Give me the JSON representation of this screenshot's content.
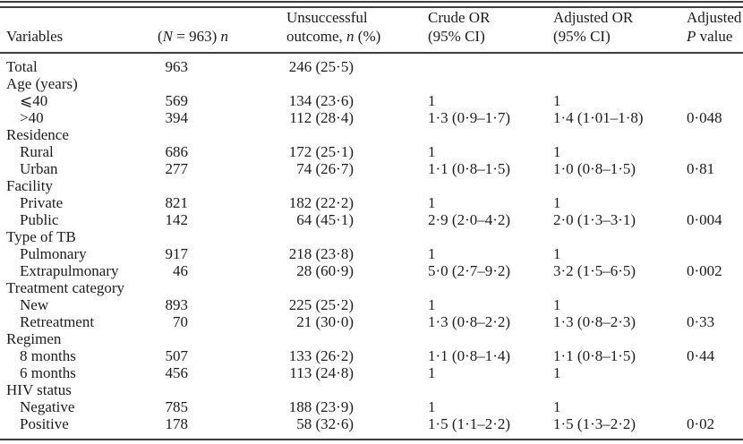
{
  "colors": {
    "background": "#ffffff",
    "text": "#1c1c1c",
    "rule": "#3d3d3d"
  },
  "table": {
    "headers": {
      "variables": "Variables",
      "n_col": {
        "open": "(",
        "N": "N",
        "rest": " = 963) ",
        "n": "n"
      },
      "outcome": {
        "line1": "Unsuccessful",
        "line2_pre": "outcome, ",
        "line2_n": "n",
        "line2_post": " (%)"
      },
      "crude": {
        "line1": "Crude OR",
        "line2": "(95% CI)"
      },
      "adjusted": {
        "line1": "Adjusted OR",
        "line2": "(95% CI)"
      },
      "p": {
        "line1": "Adjusted",
        "line2_P": "P",
        "line2_post": " value"
      }
    },
    "rows": [
      {
        "label": "Total",
        "indent": false,
        "n": "963",
        "outcome": "246 (25·5)",
        "crude": "",
        "adjusted": "",
        "p": ""
      },
      {
        "label": "Age (years)",
        "indent": false,
        "n": "",
        "outcome": "",
        "crude": "",
        "adjusted": "",
        "p": ""
      },
      {
        "label": "⩽40",
        "indent": true,
        "n": "569",
        "outcome": "134 (23·6)",
        "crude": "1",
        "adjusted": "1",
        "p": ""
      },
      {
        "label": ">40",
        "indent": true,
        "n": "394",
        "outcome": "112 (28·4)",
        "crude": "1·3 (0·9–1·7)",
        "adjusted": "1·4 (1·01–1·8)",
        "p": "0·048"
      },
      {
        "label": "Residence",
        "indent": false,
        "n": "",
        "outcome": "",
        "crude": "",
        "adjusted": "",
        "p": ""
      },
      {
        "label": "Rural",
        "indent": true,
        "n": "686",
        "outcome": "172 (25·1)",
        "crude": "1",
        "adjusted": "1",
        "p": ""
      },
      {
        "label": "Urban",
        "indent": true,
        "n": "277",
        "outcome": "74 (26·7)",
        "crude": "1·1 (0·8–1·5)",
        "adjusted": "1·0 (0·8–1·5)",
        "p": "0·81"
      },
      {
        "label": "Facility",
        "indent": false,
        "n": "",
        "outcome": "",
        "crude": "",
        "adjusted": "",
        "p": ""
      },
      {
        "label": "Private",
        "indent": true,
        "n": "821",
        "outcome": "182 (22·2)",
        "crude": "1",
        "adjusted": "1",
        "p": ""
      },
      {
        "label": "Public",
        "indent": true,
        "n": "142",
        "outcome": "64 (45·1)",
        "crude": "2·9 (2·0–4·2)",
        "adjusted": "2·0 (1·3–3·1)",
        "p": "0·004"
      },
      {
        "label": "Type of TB",
        "indent": false,
        "n": "",
        "outcome": "",
        "crude": "",
        "adjusted": "",
        "p": ""
      },
      {
        "label": "Pulmonary",
        "indent": true,
        "n": "917",
        "outcome": "218 (23·8)",
        "crude": "1",
        "adjusted": "1",
        "p": ""
      },
      {
        "label": "Extrapulmonary",
        "indent": true,
        "n": "46",
        "outcome": "28 (60·9)",
        "crude": "5·0 (2·7–9·2)",
        "adjusted": "3·2 (1·5–6·5)",
        "p": "0·002"
      },
      {
        "label": "Treatment category",
        "indent": false,
        "n": "",
        "outcome": "",
        "crude": "",
        "adjusted": "",
        "p": ""
      },
      {
        "label": "New",
        "indent": true,
        "n": "893",
        "outcome": "225 (25·2)",
        "crude": "1",
        "adjusted": "1",
        "p": ""
      },
      {
        "label": "Retreatment",
        "indent": true,
        "n": "70",
        "outcome": "21 (30·0)",
        "crude": "1·3 (0·8–2·2)",
        "adjusted": "1·3 (0·8–2·3)",
        "p": "0·33"
      },
      {
        "label": "Regimen",
        "indent": false,
        "n": "",
        "outcome": "",
        "crude": "",
        "adjusted": "",
        "p": ""
      },
      {
        "label": "8 months",
        "indent": true,
        "n": "507",
        "outcome": "133 (26·2)",
        "crude": "1·1 (0·8–1·4)",
        "adjusted": "1·1 (0·8–1·5)",
        "p": "0·44"
      },
      {
        "label": "6 months",
        "indent": true,
        "n": "456",
        "outcome": "113 (24·8)",
        "crude": "1",
        "adjusted": "1",
        "p": ""
      },
      {
        "label": "HIV status",
        "indent": false,
        "n": "",
        "outcome": "",
        "crude": "",
        "adjusted": "",
        "p": ""
      },
      {
        "label": "Negative",
        "indent": true,
        "n": "785",
        "outcome": "188 (23·9)",
        "crude": "1",
        "adjusted": "1",
        "p": ""
      },
      {
        "label": "Positive",
        "indent": true,
        "n": "178",
        "outcome": "58 (32·6)",
        "crude": "1·5 (1·1–2·2)",
        "adjusted": "1·5 (1·3–2·2)",
        "p": "0·02"
      }
    ]
  }
}
